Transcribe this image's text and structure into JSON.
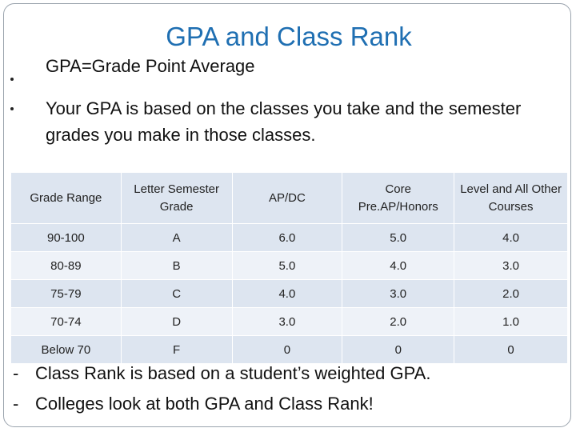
{
  "slide": {
    "title": "GPA and Class Rank",
    "bullets": [
      "GPA=Grade Point Average",
      "Your GPA is based on the classes you take and the semester grades you make in those classes."
    ],
    "table": {
      "headers": [
        "Grade Range",
        "Letter Semester Grade",
        "AP/DC",
        "Core Pre.AP/Honors",
        "Level and All Other Courses"
      ],
      "rows": [
        [
          "90-100",
          "A",
          "6.0",
          "5.0",
          "4.0"
        ],
        [
          "80-89",
          "B",
          "5.0",
          "4.0",
          "3.0"
        ],
        [
          "75-79",
          "C",
          "4.0",
          "3.0",
          "2.0"
        ],
        [
          "70-74",
          "D",
          "3.0",
          "2.0",
          "1.0"
        ],
        [
          "Below 70",
          "F",
          "0",
          "0",
          "0"
        ]
      ]
    },
    "footer": [
      {
        "marker": "-",
        "text": "Class Rank is based on a student’s weighted GPA."
      },
      {
        "marker": "-",
        "text": "Colleges look at both GPA and Class Rank!"
      }
    ]
  }
}
